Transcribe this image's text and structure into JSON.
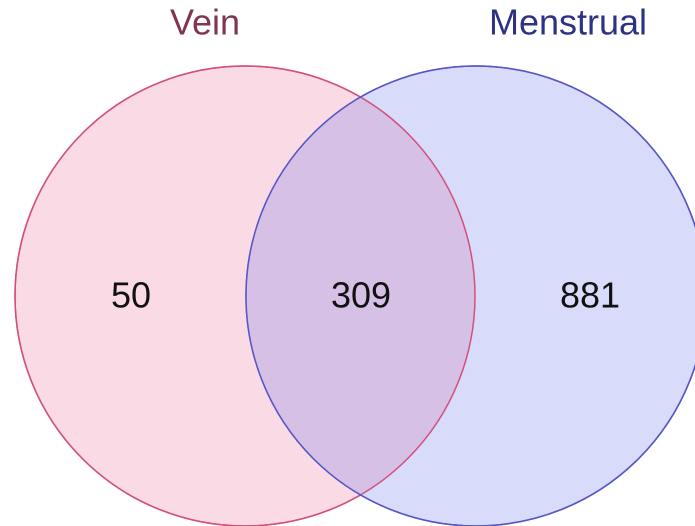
{
  "sets": [
    {
      "label": "Vein"
    },
    {
      "label": "Menstrual"
    }
  ],
  "regions": {
    "only_left": 50,
    "both": 309,
    "only_right": 881
  }
}
